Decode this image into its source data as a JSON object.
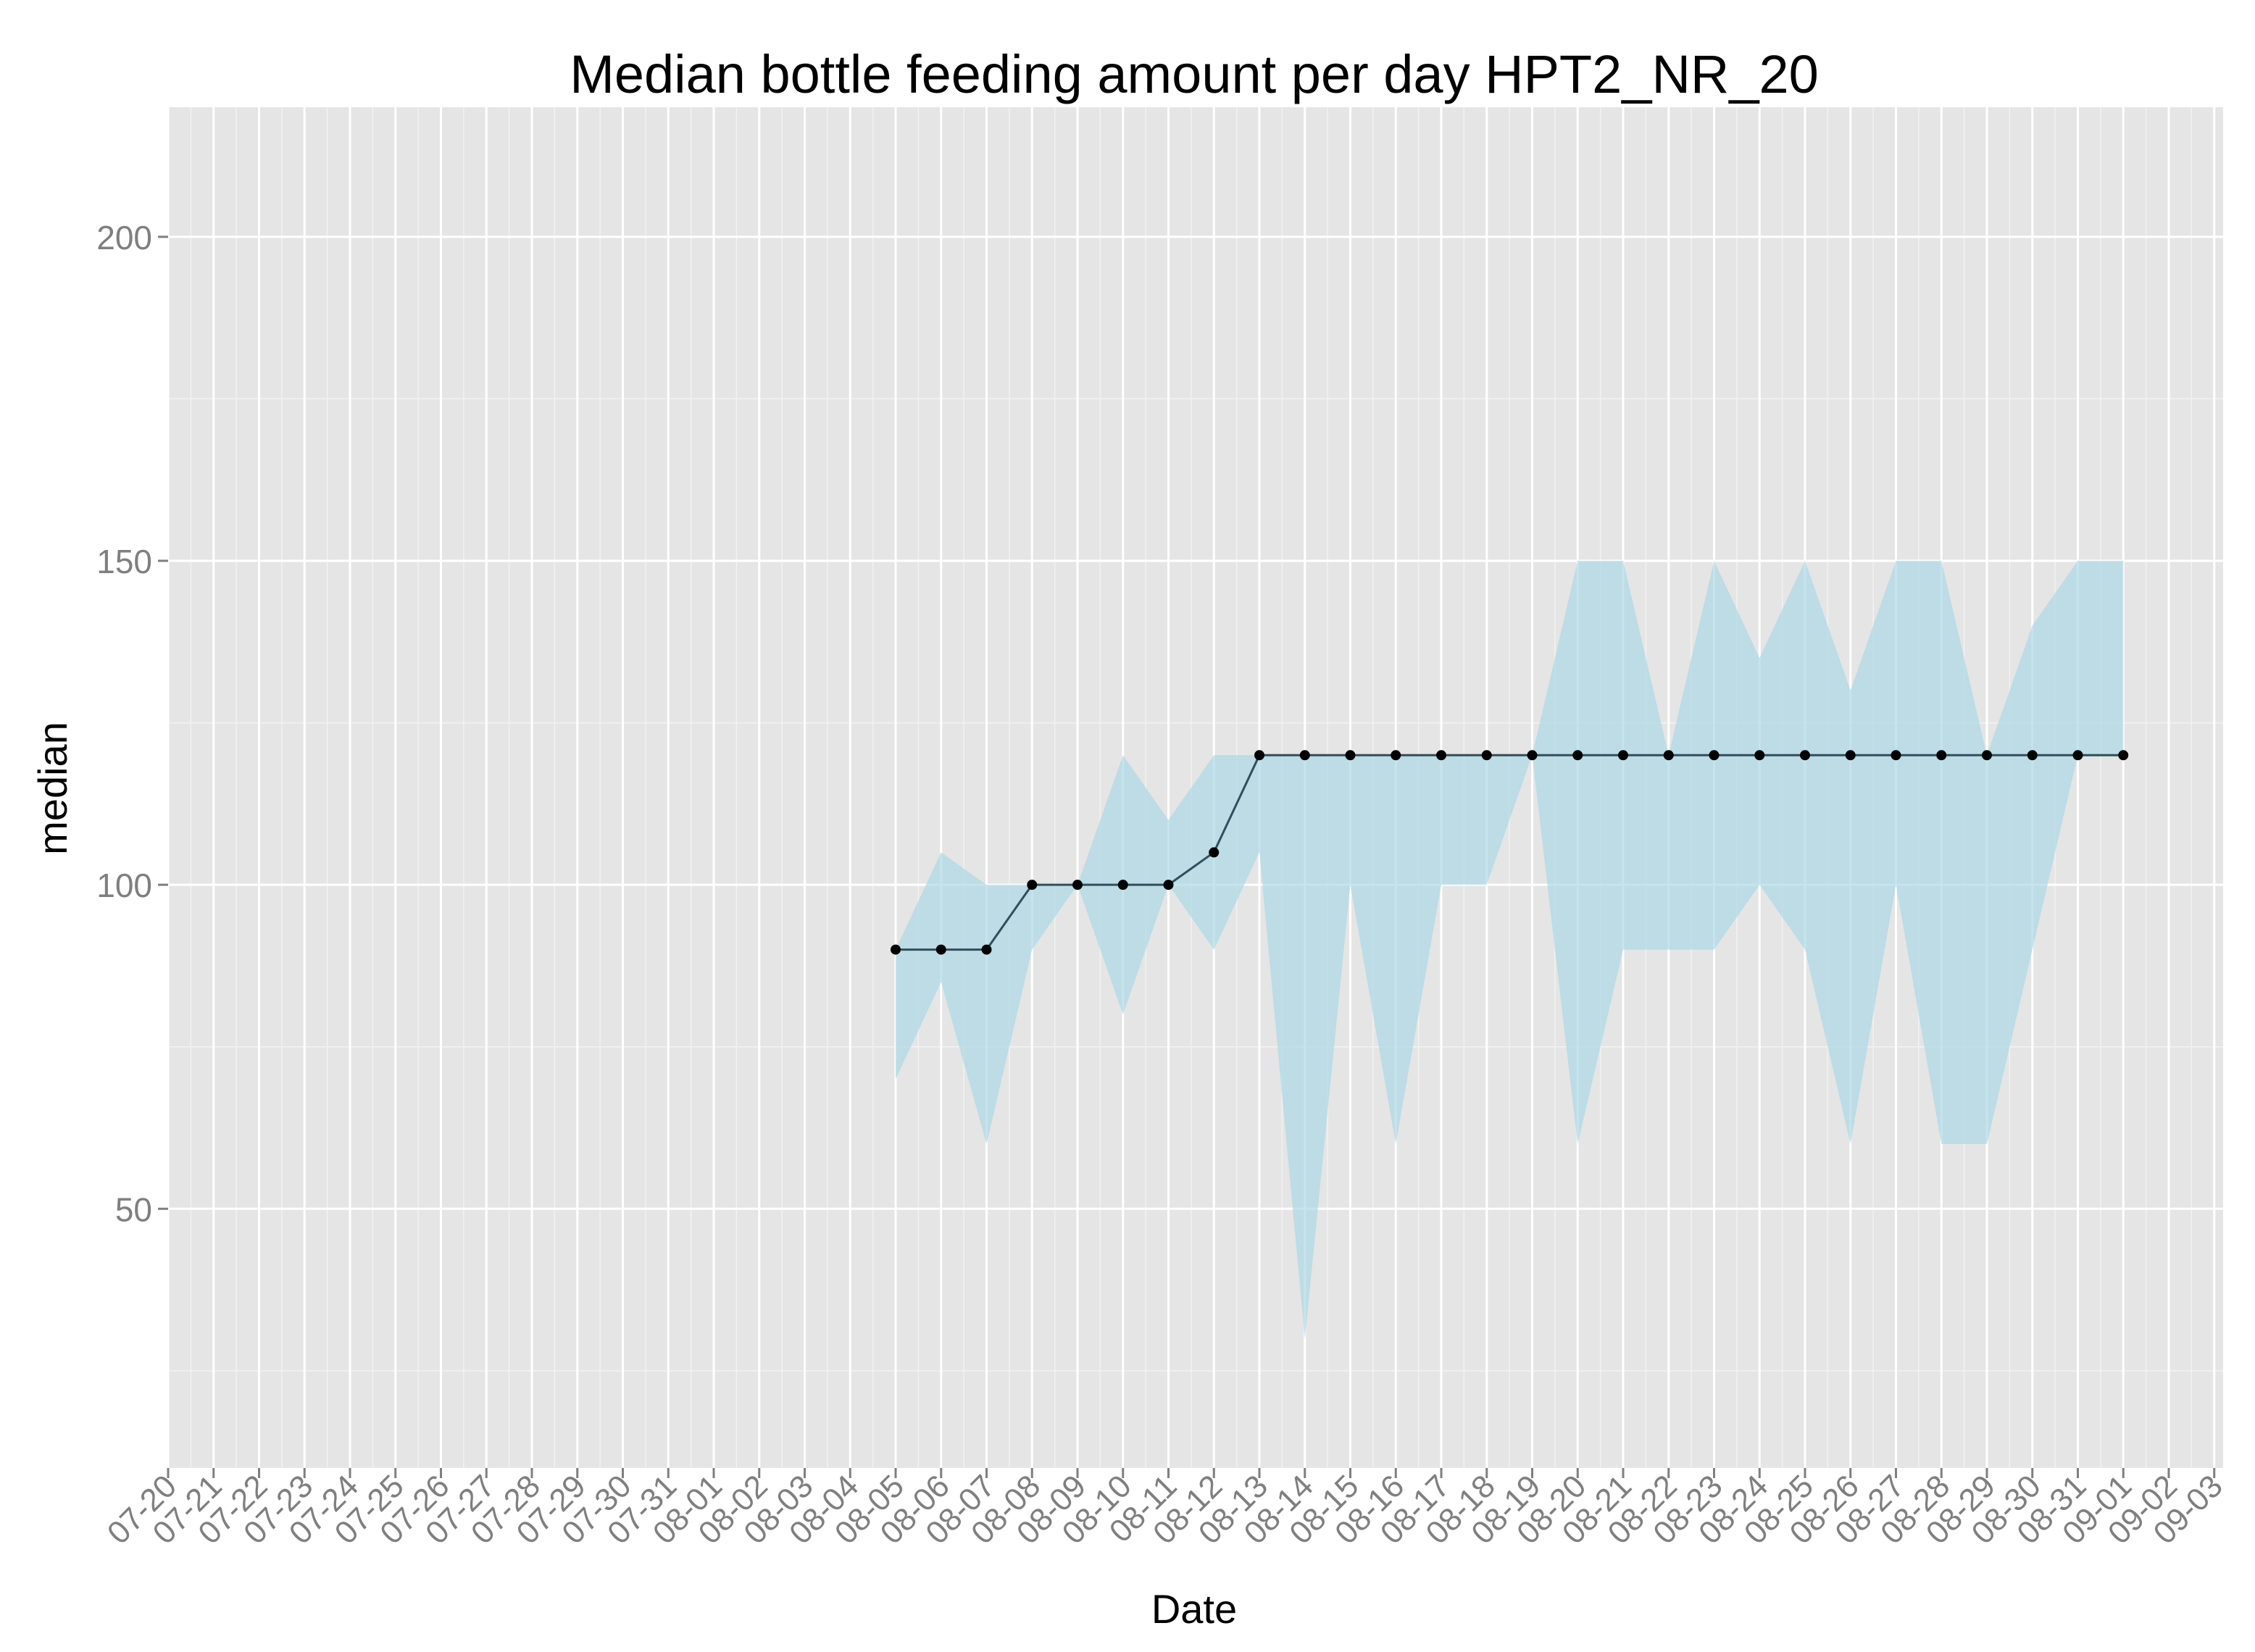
{
  "chart_data": {
    "type": "line",
    "title": "Median bottle feeding amount per day HPT2_NR_20",
    "xlabel": "Date",
    "ylabel": "median",
    "x_tick_labels": [
      "07-20",
      "07-21",
      "07-22",
      "07-23",
      "07-24",
      "07-25",
      "07-26",
      "07-27",
      "07-28",
      "07-29",
      "07-30",
      "07-31",
      "08-01",
      "08-02",
      "08-03",
      "08-04",
      "08-05",
      "08-06",
      "08-07",
      "08-08",
      "08-09",
      "08-10",
      "08-11",
      "08-12",
      "08-13",
      "08-14",
      "08-15",
      "08-16",
      "08-17",
      "08-18",
      "08-19",
      "08-20",
      "08-21",
      "08-22",
      "08-23",
      "08-24",
      "08-25",
      "08-26",
      "08-27",
      "08-28",
      "08-29",
      "08-30",
      "08-31",
      "09-01",
      "09-02",
      "09-03"
    ],
    "y_ticks": [
      50,
      100,
      150,
      200
    ],
    "ylim": [
      10,
      220
    ],
    "xlim": [
      "07-20",
      "09-03"
    ],
    "grid": true,
    "x": [
      "08-05",
      "08-06",
      "08-07",
      "08-08",
      "08-09",
      "08-10",
      "08-11",
      "08-12",
      "08-13",
      "08-14",
      "08-15",
      "08-16",
      "08-17",
      "08-18",
      "08-19",
      "08-20",
      "08-21",
      "08-22",
      "08-23",
      "08-24",
      "08-25",
      "08-26",
      "08-27",
      "08-28",
      "08-29",
      "08-30",
      "08-31",
      "09-01"
    ],
    "series": [
      {
        "type": "line",
        "values": [
          90,
          90,
          90,
          100,
          100,
          100,
          100,
          105,
          120,
          120,
          120,
          120,
          120,
          120,
          120,
          120,
          120,
          120,
          120,
          120,
          120,
          120,
          120,
          120,
          120,
          120,
          120,
          120
        ],
        "color": "#2f4f5a"
      }
    ],
    "band": {
      "type": "area",
      "lower": [
        70,
        85,
        60,
        90,
        100,
        80,
        100,
        90,
        105,
        30,
        100,
        60,
        100,
        100,
        120,
        60,
        90,
        90,
        90,
        100,
        90,
        60,
        100,
        60,
        60,
        90,
        120,
        120
      ],
      "upper": [
        90,
        105,
        100,
        100,
        100,
        120,
        110,
        120,
        120,
        120,
        120,
        120,
        120,
        120,
        120,
        150,
        150,
        120,
        150,
        135,
        150,
        130,
        150,
        150,
        120,
        140,
        150,
        150
      ],
      "color": "#add8e6"
    },
    "colors": {
      "panel": "#e5e5e5",
      "grid_major": "#ffffff",
      "grid_minor": "#f2f2f2",
      "point": "#000000",
      "tick_text": "#7f7f7f"
    }
  }
}
